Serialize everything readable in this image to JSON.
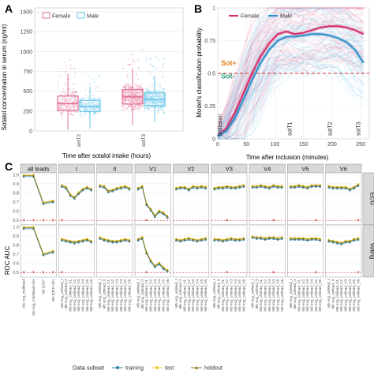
{
  "panel_labels": [
    "A",
    "B",
    "C"
  ],
  "chart_data": [
    {
      "type": "scatter",
      "panel": "A",
      "title": "",
      "xlabel": "Time after sotalol intake (hours)",
      "ylabel": "Sotalol concentration in serum (ng/ml)",
      "ylim": [
        0,
        1550
      ],
      "yticks": [
        0,
        250,
        500,
        750,
        1000,
        1250,
        1500
      ],
      "categories": [
        "sotT2",
        "sotT3"
      ],
      "legend": {
        "placement": "top-left",
        "entries": [
          "Female",
          "Male"
        ]
      },
      "series": [
        {
          "name": "Female",
          "color": "#e36f97",
          "boxes": [
            {
              "category": "sotT2",
              "q1": 260,
              "median": 345,
              "q3": 440,
              "whisker_low": 20,
              "whisker_high": 720
            },
            {
              "category": "sotT3",
              "q1": 340,
              "median": 430,
              "q3": 520,
              "whisker_low": 80,
              "whisker_high": 790
            }
          ]
        },
        {
          "name": "Male",
          "color": "#67c6ec",
          "boxes": [
            {
              "category": "sotT2",
              "q1": 245,
              "median": 310,
              "q3": 385,
              "whisker_low": 30,
              "whisker_high": 560
            },
            {
              "category": "sotT3",
              "q1": 320,
              "median": 395,
              "q3": 480,
              "whisker_low": 110,
              "whisker_high": 700
            }
          ]
        }
      ],
      "grid": true
    },
    {
      "type": "line",
      "panel": "B",
      "title": "",
      "xlabel": "Time after inclusion (minutes)",
      "ylabel": "Model's classification probability",
      "xlim": [
        0,
        265
      ],
      "ylim": [
        0,
        1.0
      ],
      "xticks": [
        0,
        50,
        100,
        150,
        200,
        250
      ],
      "yticks": [
        0,
        0.25,
        0.5,
        0.75,
        1.0
      ],
      "threshold": 0.5,
      "legend": {
        "placement": "top-center",
        "entries": [
          "Female",
          "Male"
        ]
      },
      "annotations": [
        "Sot+",
        "Sot-",
        "inclusion",
        "sotT1",
        "sotT2",
        "sotT3"
      ],
      "event_times": {
        "inclusion": 0,
        "sotT1": 125,
        "sotT2": 195,
        "sotT3": 245
      },
      "series": [
        {
          "name": "Female",
          "color": "#d62d6a",
          "x": [
            0,
            15,
            30,
            45,
            60,
            75,
            90,
            105,
            120,
            135,
            150,
            165,
            180,
            195,
            210,
            225,
            240,
            255
          ],
          "y": [
            0.02,
            0.08,
            0.2,
            0.35,
            0.5,
            0.63,
            0.73,
            0.8,
            0.82,
            0.8,
            0.81,
            0.83,
            0.85,
            0.86,
            0.86,
            0.85,
            0.83,
            0.8
          ]
        },
        {
          "name": "Male",
          "color": "#2f8fc9",
          "x": [
            0,
            15,
            30,
            45,
            60,
            75,
            90,
            105,
            120,
            135,
            150,
            165,
            180,
            195,
            210,
            225,
            240,
            255
          ],
          "y": [
            0.02,
            0.06,
            0.16,
            0.3,
            0.45,
            0.58,
            0.68,
            0.75,
            0.78,
            0.78,
            0.79,
            0.8,
            0.8,
            0.79,
            0.77,
            0.74,
            0.68,
            0.58
          ]
        }
      ],
      "grid": true
    },
    {
      "type": "line",
      "panel": "C",
      "title": "",
      "ylabel": "ROC AUC",
      "ylim": [
        0.45,
        1.02
      ],
      "yticks": [
        0.5,
        0.6,
        0.7,
        0.8,
        0.9,
        1.0
      ],
      "facet_columns": [
        "all leads",
        "I",
        "II",
        "V1",
        "V2",
        "V3",
        "V4",
        "V5",
        "V6"
      ],
      "facet_rows": [
        "ECG",
        "Voting"
      ],
      "x_all_leads": [
        "M1 ecg_multilead",
        "M2 ecg_multilead+clin",
        "M3 QTcF",
        "M4 QTcF+clin"
      ],
      "x_per_lead_template": [
        "M5 ecg_unilead_I",
        "M5 ecg_unilead_II",
        "M5 ecg_unilead_V1",
        "M5 ecg_unilead_V2",
        "M5 ecg_unilead_V3",
        "M5 ecg_unilead_V4",
        "M5 ecg_unilead_V5",
        "M5 ecg_unilead_V6"
      ],
      "legend": {
        "title": "Data subset",
        "placement": "bottom",
        "entries": [
          "training",
          "test",
          "holdout"
        ]
      },
      "series_colors": {
        "training": "#2f7fa8",
        "test": "#f2cc2a",
        "holdout": "#8a7a1a"
      },
      "significance_marker": "*",
      "rows": [
        {
          "row": "ECG",
          "facets": [
            {
              "col": "all leads",
              "values": [
                0.99,
                0.99,
                0.69,
                0.71
              ],
              "stars": [
                1,
                1,
                1,
                1
              ]
            },
            {
              "col": "I",
              "values": [
                0.88,
                0.86,
                0.78,
                0.75,
                0.8,
                0.84,
                0.86,
                0.84
              ],
              "stars": [
                1,
                0,
                0,
                0,
                0,
                0,
                0,
                0
              ]
            },
            {
              "col": "II",
              "values": [
                0.88,
                0.87,
                0.82,
                0.83,
                0.85,
                0.86,
                0.87,
                0.85
              ],
              "stars": [
                0,
                0,
                0,
                0,
                0,
                0,
                0,
                0
              ]
            },
            {
              "col": "V1",
              "values": [
                0.85,
                0.87,
                0.68,
                0.62,
                0.55,
                0.6,
                0.58,
                0.54
              ],
              "stars": [
                0,
                0,
                1,
                0,
                0,
                0,
                0,
                0
              ]
            },
            {
              "col": "V2",
              "values": [
                0.85,
                0.86,
                0.86,
                0.84,
                0.87,
                0.86,
                0.87,
                0.86
              ],
              "stars": [
                0,
                0,
                0,
                0,
                0,
                0,
                0,
                0
              ]
            },
            {
              "col": "V3",
              "values": [
                0.85,
                0.86,
                0.86,
                0.87,
                0.86,
                0.86,
                0.87,
                0.88
              ],
              "stars": [
                0,
                0,
                0,
                1,
                0,
                0,
                0,
                0
              ]
            },
            {
              "col": "V4",
              "values": [
                0.87,
                0.87,
                0.88,
                0.87,
                0.86,
                0.88,
                0.87,
                0.87
              ],
              "stars": [
                0,
                0,
                0,
                0,
                0,
                1,
                0,
                0
              ]
            },
            {
              "col": "V5",
              "values": [
                0.87,
                0.87,
                0.88,
                0.87,
                0.86,
                0.88,
                0.88,
                0.88
              ],
              "stars": [
                0,
                0,
                0,
                0,
                0,
                0,
                1,
                0
              ]
            },
            {
              "col": "V6",
              "values": [
                0.87,
                0.86,
                0.86,
                0.86,
                0.86,
                0.84,
                0.86,
                0.89
              ],
              "stars": [
                0,
                0,
                0,
                0,
                0,
                0,
                0,
                1
              ]
            }
          ]
        },
        {
          "row": "Voting",
          "facets": [
            {
              "col": "all leads",
              "values": [
                0.99,
                0.99,
                0.7,
                0.73
              ],
              "stars": [
                1,
                1,
                1,
                1
              ]
            },
            {
              "col": "I",
              "values": [
                0.86,
                0.85,
                0.84,
                0.83,
                0.84,
                0.85,
                0.86,
                0.84
              ],
              "stars": [
                1,
                0,
                0,
                0,
                0,
                0,
                0,
                0
              ]
            },
            {
              "col": "II",
              "values": [
                0.88,
                0.86,
                0.85,
                0.84,
                0.84,
                0.85,
                0.86,
                0.85
              ],
              "stars": [
                0,
                0,
                0,
                0,
                0,
                0,
                0,
                0
              ]
            },
            {
              "col": "V1",
              "values": [
                0.86,
                0.88,
                0.72,
                0.63,
                0.57,
                0.6,
                0.55,
                0.52
              ],
              "stars": [
                0,
                0,
                1,
                0,
                0,
                0,
                0,
                0
              ]
            },
            {
              "col": "V2",
              "values": [
                0.86,
                0.85,
                0.86,
                0.87,
                0.86,
                0.85,
                0.86,
                0.87
              ],
              "stars": [
                0,
                0,
                0,
                0,
                0,
                0,
                0,
                0
              ]
            },
            {
              "col": "V3",
              "values": [
                0.86,
                0.86,
                0.85,
                0.86,
                0.87,
                0.86,
                0.86,
                0.87
              ],
              "stars": [
                0,
                0,
                0,
                1,
                0,
                0,
                0,
                0
              ]
            },
            {
              "col": "V4",
              "values": [
                0.89,
                0.88,
                0.88,
                0.87,
                0.88,
                0.88,
                0.87,
                0.88
              ],
              "stars": [
                0,
                0,
                0,
                0,
                0,
                1,
                0,
                0
              ]
            },
            {
              "col": "V5",
              "values": [
                0.87,
                0.87,
                0.87,
                0.87,
                0.86,
                0.87,
                0.87,
                0.86
              ],
              "stars": [
                0,
                0,
                0,
                0,
                0,
                0,
                1,
                0
              ]
            },
            {
              "col": "V6",
              "values": [
                0.85,
                0.84,
                0.83,
                0.82,
                0.84,
                0.84,
                0.86,
                0.87
              ],
              "stars": [
                0,
                0,
                0,
                0,
                0,
                0,
                0,
                1
              ]
            }
          ]
        }
      ]
    }
  ]
}
